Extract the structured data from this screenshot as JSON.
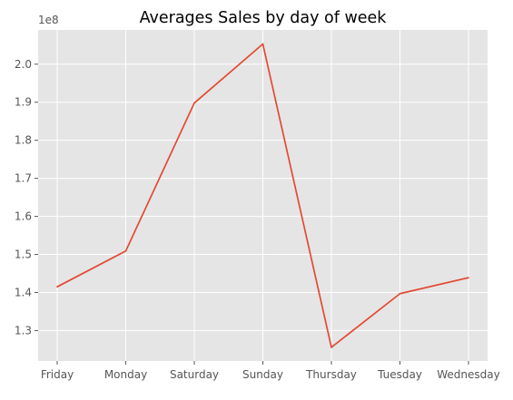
{
  "chart_data": {
    "type": "line",
    "title": "Averages Sales by day of week",
    "xlabel": "",
    "ylabel": "",
    "y_offset_label": "1e8",
    "categories": [
      "Friday",
      "Monday",
      "Saturday",
      "Sunday",
      "Thursday",
      "Tuesday",
      "Wednesday"
    ],
    "series": [
      {
        "values": [
          141500000,
          150900000,
          189800000,
          205300000,
          125600000,
          139700000,
          143900000
        ]
      }
    ],
    "ylim": [
      122000000,
      209000000
    ],
    "yticks": [
      130000000,
      140000000,
      150000000,
      160000000,
      170000000,
      180000000,
      190000000,
      200000000
    ],
    "ytick_labels": [
      "1.3",
      "1.4",
      "1.5",
      "1.6",
      "1.7",
      "1.8",
      "1.9",
      "2.0"
    ],
    "grid": true,
    "legend": "none",
    "style": "ggplot",
    "colors": {
      "line": "#E24A33",
      "plot_background": "#E5E5E5",
      "grid": "#FFFFFF",
      "tick_text": "#555555"
    }
  }
}
